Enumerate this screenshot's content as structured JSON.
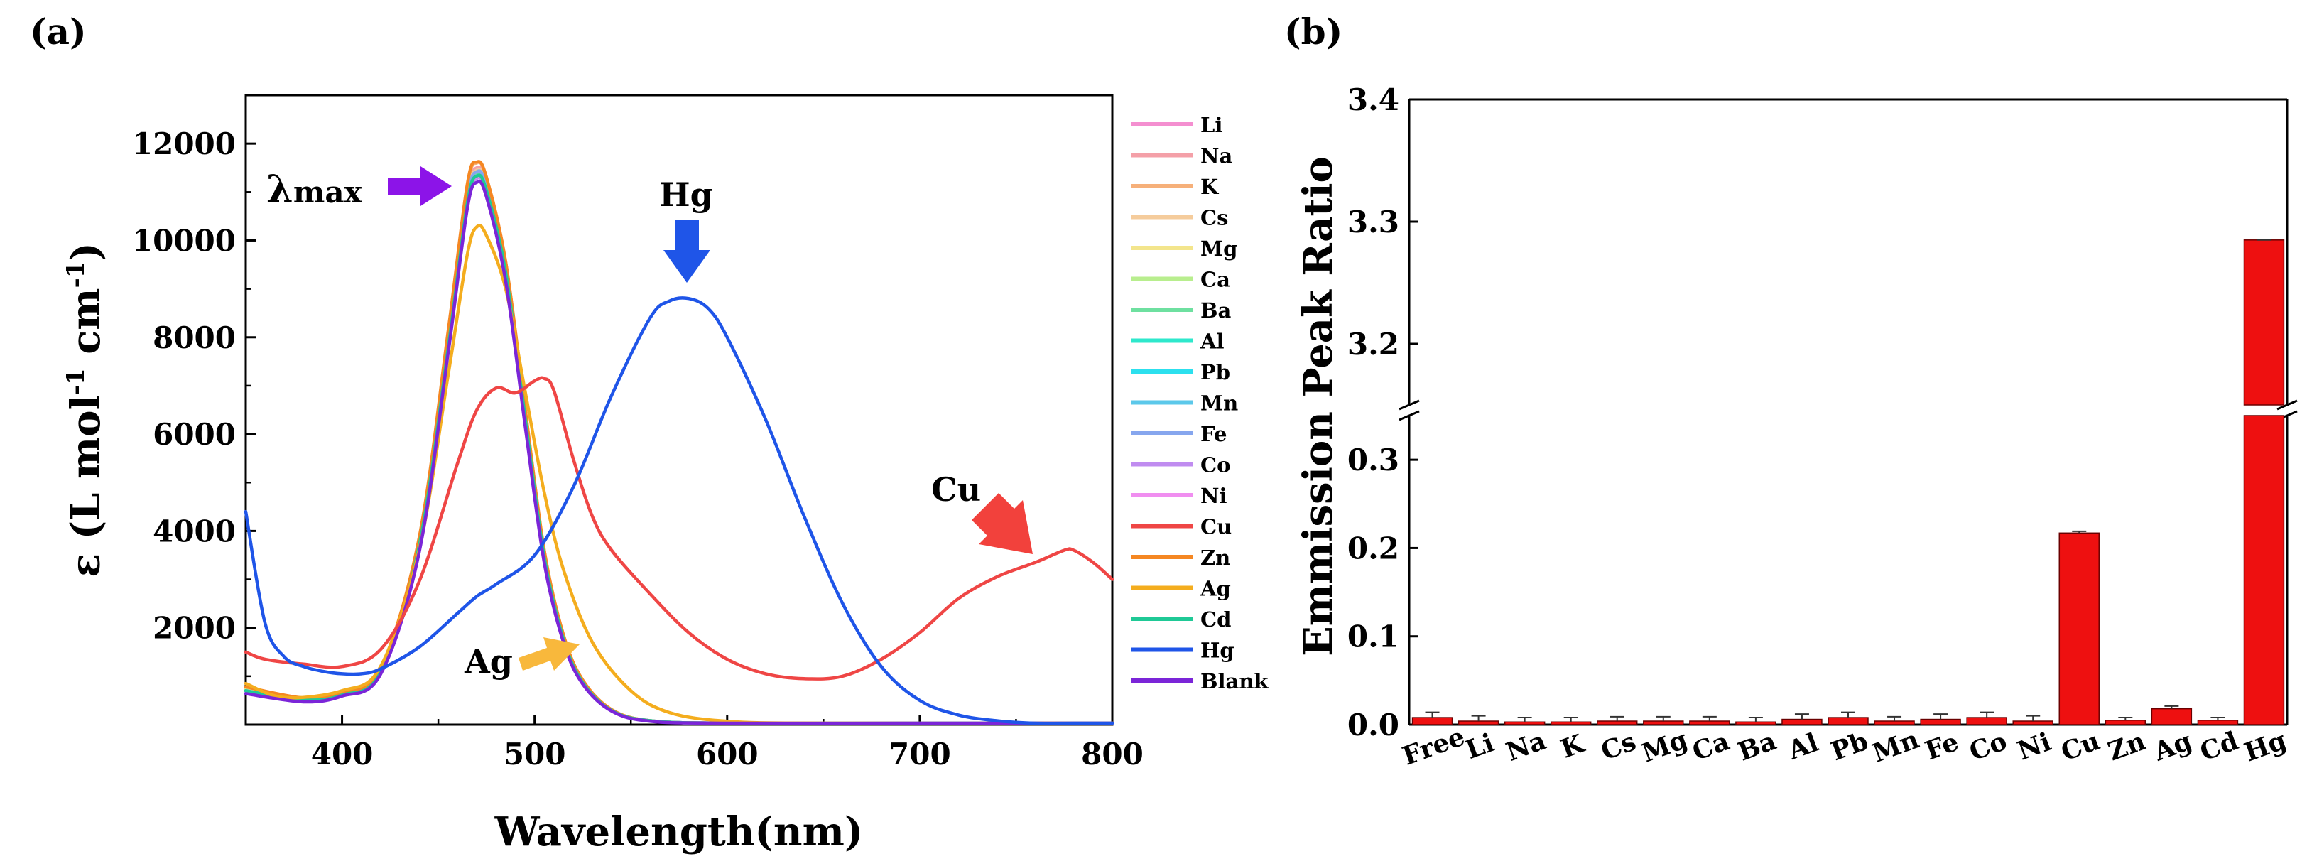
{
  "panels": {
    "a": "(a)",
    "b": "(b)"
  },
  "colors": {
    "Li": "#f48fd0",
    "Na": "#f4a0a8",
    "K": "#f6b07a",
    "Cs": "#f5cc9c",
    "Mg": "#f3e58c",
    "Ca": "#b8ee8e",
    "Ba": "#6ee0a0",
    "Al": "#2ee8cc",
    "Pb": "#2ce0ee",
    "Mn": "#5cc8ea",
    "Fe": "#86a6ee",
    "Co": "#c08cf0",
    "Ni": "#f08ef0",
    "Cu": "#ef4645",
    "Zn": "#f58722",
    "Ag": "#f4ad1e",
    "Cd": "#1fc996",
    "Hg": "#1f55e8",
    "Blank": "#7b25d8",
    "bar_fill": "#ee1010",
    "arrow_lambda": "#8c14e8",
    "arrow_hg": "#1f55e8",
    "arrow_cu": "#f2413c",
    "arrow_ag": "#f8b83c"
  },
  "chart_data": [
    {
      "id": "a",
      "type": "line",
      "xlabel": "Wavelength(nm)",
      "ylabel_parts": [
        "ε (L mol",
        "-1",
        " cm",
        "-1",
        ")"
      ],
      "xlim": [
        350,
        800
      ],
      "ylim": [
        0,
        13000
      ],
      "xticks": [
        400,
        500,
        600,
        700,
        800
      ],
      "yticks": [
        2000,
        4000,
        6000,
        8000,
        10000,
        12000
      ],
      "legend_position": "right, outside",
      "annotations": {
        "lambda_main": "λ",
        "lambda_sub": "max",
        "hg": "Hg",
        "cu": "Cu",
        "ag": "Ag"
      },
      "series": [
        {
          "name": "Li",
          "x": [
            350,
            380,
            400,
            420,
            440,
            455,
            465,
            470,
            475,
            485,
            495,
            505,
            515,
            525,
            540,
            560,
            600,
            700,
            800
          ],
          "y": [
            720,
            520,
            620,
            1100,
            3700,
            7800,
            10800,
            11400,
            11100,
            9400,
            6400,
            3500,
            1800,
            900,
            300,
            80,
            0,
            0,
            0
          ]
        },
        {
          "name": "Na",
          "x": [
            350,
            380,
            400,
            420,
            440,
            455,
            465,
            470,
            475,
            485,
            495,
            505,
            515,
            525,
            540,
            560,
            600,
            700,
            800
          ],
          "y": [
            740,
            530,
            630,
            1120,
            3750,
            7900,
            10950,
            11500,
            11200,
            9500,
            6500,
            3550,
            1800,
            900,
            300,
            80,
            0,
            0,
            0
          ]
        },
        {
          "name": "K",
          "x": [
            350,
            380,
            400,
            420,
            440,
            455,
            465,
            470,
            475,
            485,
            495,
            505,
            515,
            525,
            540,
            560,
            600,
            700,
            800
          ],
          "y": [
            760,
            540,
            640,
            1150,
            3800,
            8000,
            11100,
            11600,
            11300,
            9550,
            6550,
            3600,
            1850,
            920,
            310,
            80,
            0,
            0,
            0
          ]
        },
        {
          "name": "Cs",
          "x": [
            350,
            380,
            400,
            420,
            440,
            455,
            465,
            470,
            475,
            485,
            495,
            505,
            515,
            525,
            540,
            560,
            600,
            700,
            800
          ],
          "y": [
            730,
            525,
            625,
            1110,
            3720,
            7850,
            10880,
            11450,
            11150,
            9450,
            6450,
            3520,
            1800,
            900,
            300,
            80,
            0,
            0,
            0
          ]
        },
        {
          "name": "Mg",
          "x": [
            350,
            380,
            400,
            420,
            440,
            455,
            465,
            470,
            475,
            485,
            495,
            505,
            515,
            525,
            540,
            560,
            600,
            700,
            800
          ],
          "y": [
            720,
            520,
            620,
            1100,
            3700,
            7800,
            10850,
            11420,
            11120,
            9420,
            6420,
            3500,
            1790,
            890,
            300,
            80,
            0,
            0,
            0
          ]
        },
        {
          "name": "Ca",
          "x": [
            350,
            380,
            400,
            420,
            440,
            455,
            465,
            470,
            475,
            485,
            495,
            505,
            515,
            525,
            540,
            560,
            600,
            700,
            800
          ],
          "y": [
            710,
            515,
            615,
            1090,
            3690,
            7780,
            10800,
            11380,
            11080,
            9380,
            6400,
            3480,
            1780,
            880,
            290,
            80,
            0,
            0,
            0
          ]
        },
        {
          "name": "Ba",
          "x": [
            350,
            380,
            400,
            420,
            440,
            455,
            465,
            470,
            475,
            485,
            495,
            505,
            515,
            525,
            540,
            560,
            600,
            700,
            800
          ],
          "y": [
            700,
            510,
            610,
            1080,
            3680,
            7760,
            10780,
            11350,
            11050,
            9350,
            6380,
            3470,
            1770,
            880,
            290,
            80,
            0,
            0,
            0
          ]
        },
        {
          "name": "Al",
          "x": [
            350,
            380,
            400,
            420,
            440,
            455,
            465,
            470,
            475,
            485,
            495,
            505,
            515,
            525,
            540,
            560,
            600,
            700,
            800
          ],
          "y": [
            700,
            510,
            610,
            1080,
            3680,
            7750,
            10760,
            11330,
            11030,
            9330,
            6360,
            3460,
            1760,
            870,
            290,
            80,
            0,
            0,
            0
          ]
        },
        {
          "name": "Pb",
          "x": [
            350,
            380,
            400,
            420,
            440,
            455,
            465,
            470,
            475,
            485,
            495,
            505,
            515,
            525,
            540,
            560,
            600,
            700,
            800
          ],
          "y": [
            690,
            505,
            605,
            1070,
            3660,
            7720,
            10720,
            11300,
            11000,
            9300,
            6340,
            3450,
            1750,
            870,
            290,
            80,
            0,
            0,
            0
          ]
        },
        {
          "name": "Mn",
          "x": [
            350,
            380,
            400,
            420,
            440,
            455,
            465,
            470,
            475,
            485,
            495,
            505,
            515,
            525,
            540,
            560,
            600,
            700,
            800
          ],
          "y": [
            690,
            505,
            605,
            1070,
            3660,
            7720,
            10720,
            11300,
            11000,
            9300,
            6340,
            3450,
            1750,
            870,
            290,
            80,
            0,
            0,
            0
          ]
        },
        {
          "name": "Fe",
          "x": [
            350,
            380,
            400,
            420,
            440,
            455,
            465,
            470,
            475,
            485,
            495,
            505,
            515,
            525,
            540,
            560,
            600,
            700,
            800
          ],
          "y": [
            700,
            510,
            610,
            1090,
            3700,
            7800,
            10850,
            11420,
            11120,
            9420,
            6420,
            3500,
            1790,
            890,
            300,
            80,
            0,
            0,
            0
          ]
        },
        {
          "name": "Co",
          "x": [
            350,
            380,
            400,
            420,
            440,
            455,
            465,
            470,
            475,
            485,
            495,
            505,
            515,
            525,
            540,
            560,
            600,
            700,
            800
          ],
          "y": [
            690,
            505,
            605,
            1070,
            3650,
            7700,
            10700,
            11280,
            10980,
            9280,
            6320,
            3440,
            1750,
            870,
            290,
            80,
            0,
            0,
            0
          ]
        },
        {
          "name": "Ni",
          "x": [
            350,
            380,
            400,
            420,
            440,
            455,
            465,
            470,
            475,
            485,
            495,
            505,
            515,
            525,
            540,
            560,
            600,
            700,
            800
          ],
          "y": [
            700,
            510,
            610,
            1080,
            3670,
            7740,
            10750,
            11320,
            11020,
            9320,
            6350,
            3460,
            1760,
            870,
            290,
            80,
            0,
            0,
            0
          ]
        },
        {
          "name": "Cu",
          "x": [
            350,
            360,
            380,
            400,
            420,
            440,
            460,
            470,
            480,
            490,
            500,
            505,
            510,
            520,
            530,
            540,
            560,
            580,
            600,
            620,
            640,
            660,
            680,
            700,
            720,
            740,
            760,
            775,
            780,
            790,
            800
          ],
          "y": [
            1500,
            1350,
            1250,
            1200,
            1550,
            2950,
            5400,
            6500,
            6950,
            6850,
            7100,
            7150,
            6900,
            5500,
            4300,
            3600,
            2700,
            1900,
            1350,
            1050,
            950,
            1000,
            1350,
            1900,
            2600,
            3050,
            3350,
            3600,
            3600,
            3350,
            3000
          ]
        },
        {
          "name": "Zn",
          "x": [
            350,
            380,
            400,
            420,
            440,
            455,
            465,
            470,
            475,
            485,
            495,
            505,
            515,
            525,
            540,
            560,
            600,
            700,
            800
          ],
          "y": [
            780,
            550,
            650,
            1170,
            3850,
            8100,
            11150,
            11620,
            11300,
            9550,
            6550,
            3600,
            1850,
            920,
            310,
            80,
            0,
            0,
            0
          ]
        },
        {
          "name": "Ag",
          "x": [
            350,
            370,
            400,
            420,
            440,
            455,
            465,
            470,
            475,
            485,
            495,
            505,
            515,
            530,
            550,
            570,
            600,
            650,
            800
          ],
          "y": [
            850,
            560,
            700,
            1200,
            3600,
            7200,
            9700,
            10280,
            10100,
            9000,
            6900,
            4800,
            3200,
            1700,
            700,
            250,
            70,
            0,
            0
          ]
        },
        {
          "name": "Cd",
          "x": [
            350,
            380,
            400,
            420,
            440,
            455,
            465,
            470,
            475,
            485,
            495,
            505,
            515,
            525,
            540,
            560,
            600,
            700,
            800
          ],
          "y": [
            700,
            510,
            610,
            1080,
            3680,
            7750,
            10760,
            11330,
            11030,
            9330,
            6360,
            3460,
            1760,
            870,
            290,
            80,
            0,
            0,
            0
          ]
        },
        {
          "name": "Hg",
          "x": [
            350,
            360,
            370,
            380,
            390,
            400,
            410,
            420,
            440,
            460,
            470,
            480,
            500,
            520,
            540,
            560,
            570,
            580,
            590,
            600,
            620,
            640,
            660,
            680,
            700,
            720,
            740,
            760,
            780,
            800
          ],
          "y": [
            4400,
            2100,
            1400,
            1200,
            1100,
            1050,
            1050,
            1150,
            1600,
            2300,
            2650,
            2900,
            3500,
            4900,
            6800,
            8400,
            8750,
            8800,
            8600,
            8000,
            6300,
            4300,
            2500,
            1200,
            500,
            200,
            80,
            20,
            0,
            0
          ]
        },
        {
          "name": "Blank",
          "x": [
            350,
            380,
            400,
            420,
            440,
            455,
            465,
            470,
            475,
            485,
            495,
            505,
            515,
            525,
            540,
            560,
            600,
            700,
            800
          ],
          "y": [
            640,
            470,
            590,
            1040,
            3550,
            7650,
            10650,
            11200,
            10900,
            9150,
            6200,
            3350,
            1700,
            840,
            280,
            70,
            0,
            0,
            0
          ]
        }
      ]
    },
    {
      "id": "b",
      "type": "bar",
      "ylabel": "Emmission Peak Ratio",
      "categories": [
        "Free",
        "Li",
        "Na",
        "K",
        "Cs",
        "Mg",
        "Ca",
        "Ba",
        "Al",
        "Pb",
        "Mn",
        "Fe",
        "Co",
        "Ni",
        "Cu",
        "Zn",
        "Ag",
        "Cd",
        "Hg"
      ],
      "values": [
        0.008,
        0.004,
        0.003,
        0.003,
        0.004,
        0.004,
        0.004,
        0.003,
        0.006,
        0.008,
        0.004,
        0.006,
        0.008,
        0.004,
        0.217,
        0.005,
        0.018,
        0.005,
        3.285
      ],
      "errors": [
        0.006,
        0.006,
        0.005,
        0.005,
        0.005,
        0.005,
        0.005,
        0.005,
        0.006,
        0.006,
        0.005,
        0.006,
        0.006,
        0.006,
        0.002,
        0.003,
        0.003,
        0.003,
        0.002
      ],
      "y_axis_break": {
        "lower": [
          0,
          0.35
        ],
        "upper": [
          3.15,
          3.4
        ]
      },
      "yticks_lower": [
        "0.0",
        "0.1",
        "0.2",
        "0.3"
      ],
      "yticks_upper": [
        "3.2",
        "3.3",
        "3.4"
      ],
      "yticks_lower_values": [
        0,
        0.1,
        0.2,
        0.3
      ],
      "yticks_upper_values": [
        3.2,
        3.3,
        3.4
      ]
    }
  ]
}
